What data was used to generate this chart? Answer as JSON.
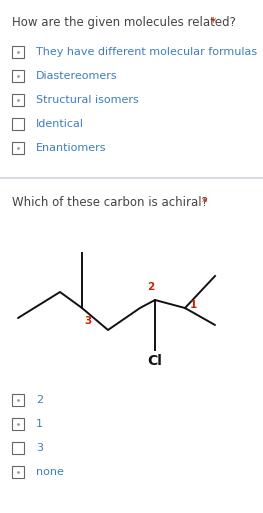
{
  "bg_color": "#ffffff",
  "separator_color": "#d0d0e0",
  "question1": "How are the given molecules related?",
  "q1_star": " *",
  "q1_options": [
    "They have different molecular formulas",
    "Diastereomers",
    "Structural isomers",
    "Identical",
    "Enantiomers"
  ],
  "q1_has_dot": [
    true,
    true,
    true,
    false,
    true
  ],
  "question2": "Which of these carbon is achiral?",
  "q2_star": " *",
  "q2_options": [
    "2",
    "1",
    "3",
    "none"
  ],
  "q2_has_dot": [
    true,
    true,
    false,
    true
  ],
  "text_color": "#3d7ebf",
  "question_color": "#444444",
  "star_color": "#cc2200",
  "label_color_red": "#cc2200",
  "molecule_color": "#111111",
  "font_size_q": 8.5,
  "font_size_opt": 8.0,
  "font_size_cl": 10.0
}
